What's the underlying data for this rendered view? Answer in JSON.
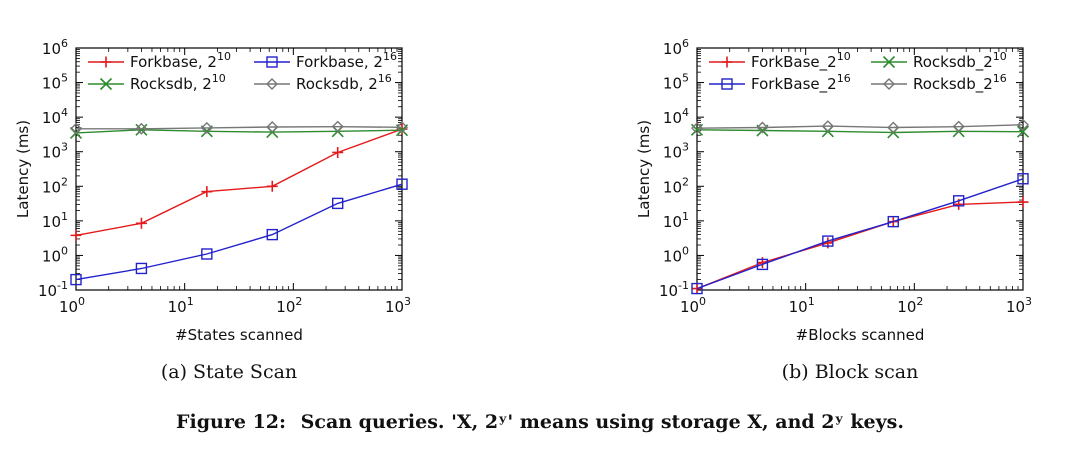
{
  "figure": {
    "caption_prefix": "Figure 12:",
    "caption_text": "Scan queries. 'X, 2ʸ' means using storage X, and 2ʸ keys."
  },
  "chart_data": [
    {
      "type": "line",
      "subtitle": "(a) State Scan",
      "xlabel": "#States scanned",
      "ylabel": "Latency (ms)",
      "xscale": "log",
      "yscale": "log",
      "xlim": [
        1,
        1000
      ],
      "ylim": [
        0.1,
        1000000
      ],
      "x_ticks": [
        {
          "base": "10",
          "exp": "0"
        },
        {
          "base": "10",
          "exp": "1"
        },
        {
          "base": "10",
          "exp": "2"
        },
        {
          "base": "10",
          "exp": "3"
        }
      ],
      "y_ticks": [
        {
          "base": "10",
          "exp": "-1"
        },
        {
          "base": "10",
          "exp": "0"
        },
        {
          "base": "10",
          "exp": "1"
        },
        {
          "base": "10",
          "exp": "2"
        },
        {
          "base": "10",
          "exp": "3"
        },
        {
          "base": "10",
          "exp": "4"
        },
        {
          "base": "10",
          "exp": "5"
        },
        {
          "base": "10",
          "exp": "6"
        }
      ],
      "x": [
        1,
        4,
        16,
        64,
        256,
        1000
      ],
      "legend_position": "top",
      "series": [
        {
          "name": "Forkbase, 2",
          "sup": "10",
          "color": "#e41a1c",
          "marker": "plus",
          "values": [
            3.8,
            8.5,
            70,
            100,
            950,
            4500
          ]
        },
        {
          "name": "Forkbase, 2",
          "sup": "16",
          "color": "#2222cc",
          "marker": "square",
          "values": [
            0.2,
            0.42,
            1.1,
            4,
            32,
            115
          ]
        },
        {
          "name": "Rocksdb, 2",
          "sup": "10",
          "color": "#2e8b2e",
          "marker": "x",
          "values": [
            3500,
            4300,
            3900,
            3700,
            3900,
            4200
          ]
        },
        {
          "name": "Rocksdb, 2",
          "sup": "16",
          "color": "#777777",
          "marker": "diamond",
          "values": [
            4600,
            4600,
            4900,
            5200,
            5300,
            5100
          ]
        }
      ]
    },
    {
      "type": "line",
      "subtitle": "(b) Block scan",
      "xlabel": "#Blocks scanned",
      "ylabel": "Latency (ms)",
      "xscale": "log",
      "yscale": "log",
      "xlim": [
        1,
        1000
      ],
      "ylim": [
        0.1,
        1000000
      ],
      "x_ticks": [
        {
          "base": "10",
          "exp": "0"
        },
        {
          "base": "10",
          "exp": "1"
        },
        {
          "base": "10",
          "exp": "2"
        },
        {
          "base": "10",
          "exp": "3"
        }
      ],
      "y_ticks": [
        {
          "base": "10",
          "exp": "-1"
        },
        {
          "base": "10",
          "exp": "0"
        },
        {
          "base": "10",
          "exp": "1"
        },
        {
          "base": "10",
          "exp": "2"
        },
        {
          "base": "10",
          "exp": "3"
        },
        {
          "base": "10",
          "exp": "4"
        },
        {
          "base": "10",
          "exp": "5"
        },
        {
          "base": "10",
          "exp": "6"
        }
      ],
      "x": [
        1,
        4,
        16,
        64,
        256,
        1000
      ],
      "legend_position": "top",
      "series": [
        {
          "name": "ForkBase_2",
          "sup": "10",
          "color": "#e41a1c",
          "marker": "plus",
          "values": [
            0.11,
            0.62,
            2.3,
            9.5,
            30,
            35
          ]
        },
        {
          "name": "Rocksdb_2",
          "sup": "10",
          "color": "#2e8b2e",
          "marker": "x",
          "values": [
            4300,
            4100,
            3900,
            3600,
            3900,
            3800
          ]
        },
        {
          "name": "ForkBase_2",
          "sup": "16",
          "color": "#2222cc",
          "marker": "square",
          "values": [
            0.11,
            0.55,
            2.6,
            9.5,
            38,
            165
          ]
        },
        {
          "name": "Rocksdb_2",
          "sup": "16",
          "color": "#777777",
          "marker": "diamond",
          "values": [
            4800,
            5000,
            5500,
            5000,
            5300,
            6000
          ]
        }
      ]
    }
  ]
}
